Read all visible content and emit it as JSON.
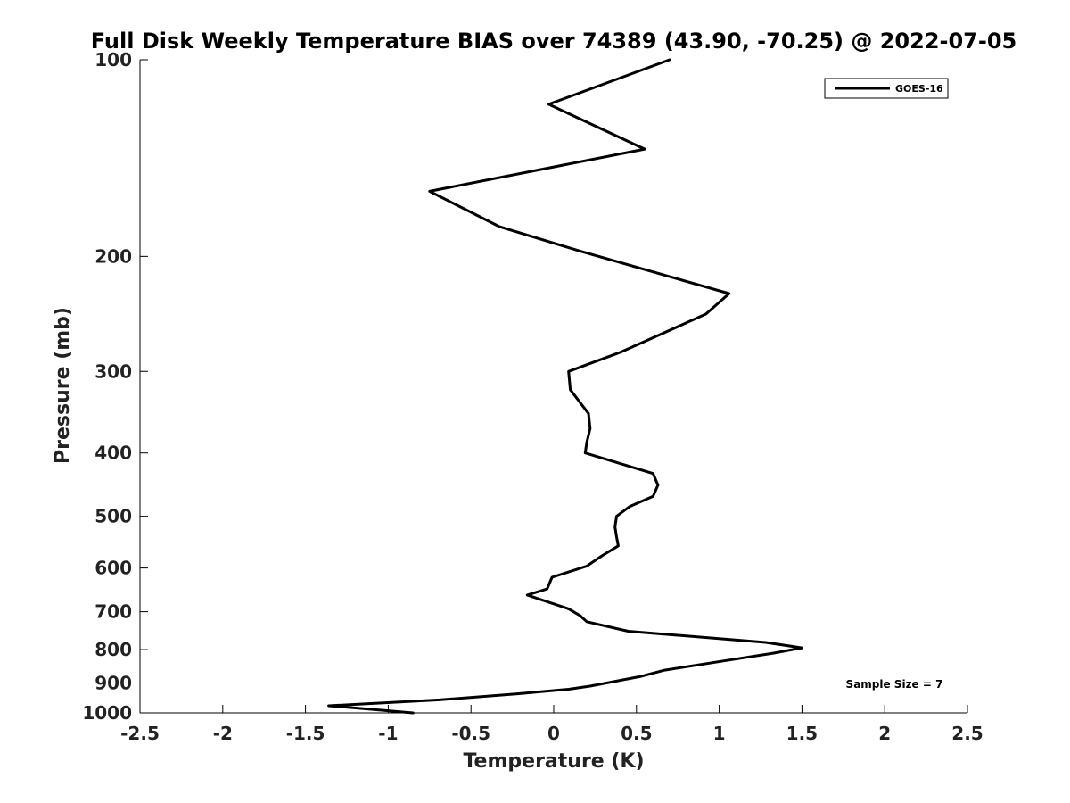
{
  "chart_data": {
    "type": "line",
    "title": "Full Disk Weekly Temperature BIAS over 74389 (43.90, -70.25) @ 2022-07-05",
    "xlabel": "Temperature (K)",
    "ylabel": "Pressure (mb)",
    "xlim": [
      -2.5,
      2.5
    ],
    "ylim": [
      1000,
      100
    ],
    "y_scale": "log",
    "x_ticks": [
      -2.5,
      -2,
      -1.5,
      -1,
      -0.5,
      0,
      0.5,
      1,
      1.5,
      2,
      2.5
    ],
    "x_tick_labels": [
      "-2.5",
      "-2",
      "-1.5",
      "-1",
      "-0.5",
      "0",
      "0.5",
      "1",
      "1.5",
      "2",
      "2.5"
    ],
    "y_ticks": [
      100,
      200,
      300,
      400,
      500,
      600,
      700,
      800,
      900,
      1000
    ],
    "y_tick_labels": [
      "100",
      "200",
      "300",
      "400",
      "500",
      "600",
      "700",
      "800",
      "900",
      "1000"
    ],
    "grid": false,
    "legend_position": "top-right",
    "annotation": "Sample Size = 7",
    "series": [
      {
        "name": "GOES-16",
        "color": "#000000",
        "points": [
          {
            "x": 0.7,
            "y": 100
          },
          {
            "x": -0.03,
            "y": 117
          },
          {
            "x": 0.55,
            "y": 137
          },
          {
            "x": -0.75,
            "y": 159
          },
          {
            "x": -0.33,
            "y": 180
          },
          {
            "x": 0.15,
            "y": 196
          },
          {
            "x": 1.06,
            "y": 228
          },
          {
            "x": 0.92,
            "y": 245
          },
          {
            "x": 0.41,
            "y": 280
          },
          {
            "x": 0.09,
            "y": 300
          },
          {
            "x": 0.1,
            "y": 320
          },
          {
            "x": 0.21,
            "y": 348
          },
          {
            "x": 0.22,
            "y": 367
          },
          {
            "x": 0.2,
            "y": 385
          },
          {
            "x": 0.19,
            "y": 400
          },
          {
            "x": 0.6,
            "y": 430
          },
          {
            "x": 0.63,
            "y": 448
          },
          {
            "x": 0.6,
            "y": 466
          },
          {
            "x": 0.46,
            "y": 483
          },
          {
            "x": 0.38,
            "y": 500
          },
          {
            "x": 0.37,
            "y": 519
          },
          {
            "x": 0.38,
            "y": 538
          },
          {
            "x": 0.39,
            "y": 555
          },
          {
            "x": 0.29,
            "y": 575
          },
          {
            "x": 0.2,
            "y": 596
          },
          {
            "x": -0.01,
            "y": 620
          },
          {
            "x": -0.04,
            "y": 646
          },
          {
            "x": -0.16,
            "y": 660
          },
          {
            "x": 0.09,
            "y": 693
          },
          {
            "x": 0.16,
            "y": 710
          },
          {
            "x": 0.2,
            "y": 725
          },
          {
            "x": 0.45,
            "y": 750
          },
          {
            "x": 1.28,
            "y": 780
          },
          {
            "x": 1.5,
            "y": 795
          },
          {
            "x": 1.33,
            "y": 810
          },
          {
            "x": 1.06,
            "y": 830
          },
          {
            "x": 0.67,
            "y": 860
          },
          {
            "x": 0.52,
            "y": 880
          },
          {
            "x": 0.22,
            "y": 910
          },
          {
            "x": 0.09,
            "y": 920
          },
          {
            "x": -0.22,
            "y": 935
          },
          {
            "x": -0.69,
            "y": 955
          },
          {
            "x": -1.36,
            "y": 975
          },
          {
            "x": -0.85,
            "y": 1000
          }
        ]
      }
    ]
  }
}
